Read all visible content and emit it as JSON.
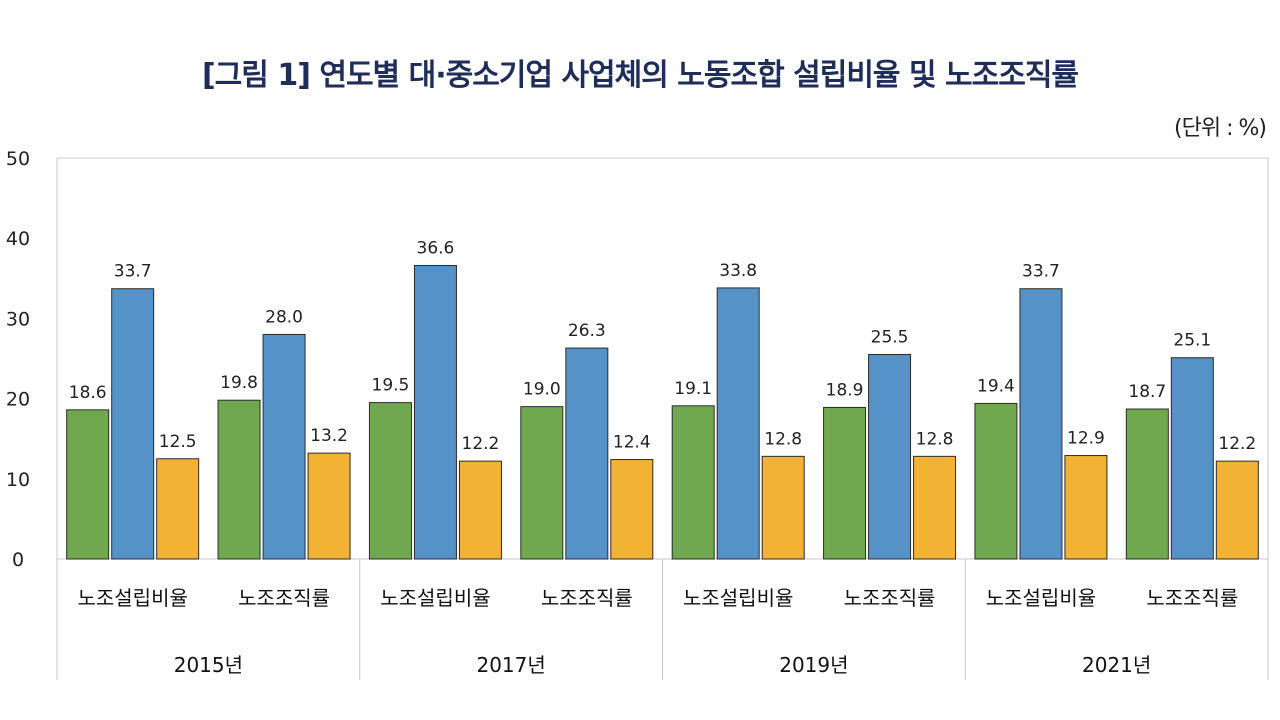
{
  "title": "[그림 1] 연도별 대·중소기업 사업체의 노동조합 설립비율 및 노조조직률",
  "unit_label": "(단위 : %)",
  "chart_data": {
    "type": "bar",
    "title": "[그림 1] 연도별 대·중소기업 사업체의 노동조합 설립비율 및 노조조직률",
    "ylim": [
      0,
      50
    ],
    "yticks": [
      0,
      10,
      20,
      30,
      40,
      50
    ],
    "grid": false,
    "groups": [
      {
        "year": "2015년",
        "metrics": [
          {
            "label": "노조설립비율",
            "values": [
              18.6,
              33.7,
              12.5
            ]
          },
          {
            "label": "노조조직률",
            "values": [
              19.8,
              28.0,
              13.2
            ]
          }
        ]
      },
      {
        "year": "2017년",
        "metrics": [
          {
            "label": "노조설립비율",
            "values": [
              19.5,
              36.6,
              12.2
            ]
          },
          {
            "label": "노조조직률",
            "values": [
              19.0,
              26.3,
              12.4
            ]
          }
        ]
      },
      {
        "year": "2019년",
        "metrics": [
          {
            "label": "노조설립비율",
            "values": [
              19.1,
              33.8,
              12.8
            ]
          },
          {
            "label": "노조조직률",
            "values": [
              18.9,
              25.5,
              12.8
            ]
          }
        ]
      },
      {
        "year": "2021년",
        "metrics": [
          {
            "label": "노조설립비율",
            "values": [
              19.4,
              33.7,
              12.9
            ]
          },
          {
            "label": "노조조직률",
            "values": [
              18.7,
              25.1,
              12.2
            ]
          }
        ]
      }
    ],
    "bar_colors": [
      "#70a84f",
      "#5592c8",
      "#f2b233"
    ]
  }
}
